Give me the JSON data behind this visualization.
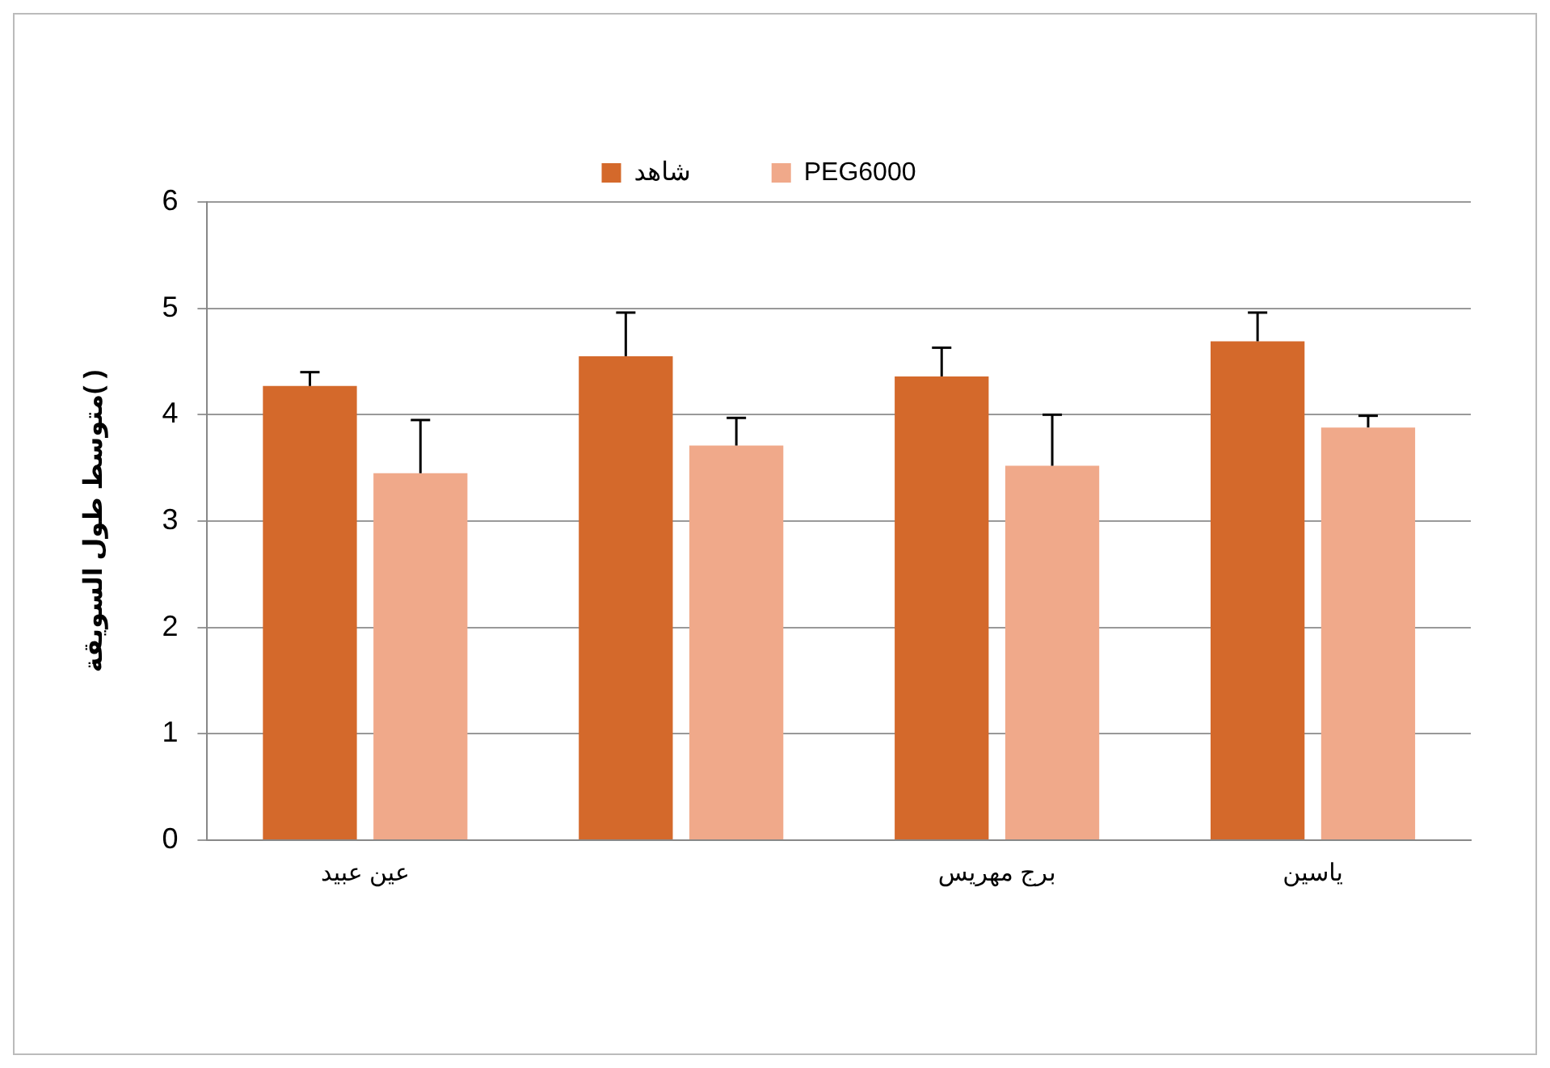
{
  "chart_data": {
    "type": "bar",
    "ylabel": "متوسط طول السويقة( )",
    "categories": [
      "عين عبيد",
      null,
      "برج مهريس",
      "ياسين"
    ],
    "series": [
      {
        "name": "شاهد",
        "color": "#d4692b",
        "values": [
          4.27,
          4.55,
          4.36,
          4.69
        ],
        "errors": [
          [
            4.27,
            4.4
          ],
          [
            4.55,
            4.96
          ],
          [
            4.36,
            4.63
          ],
          [
            4.69,
            4.96
          ]
        ]
      },
      {
        "name": "PEG6000",
        "color": "#f0a98a",
        "values": [
          3.45,
          3.71,
          3.52,
          3.88
        ],
        "errors": [
          [
            3.45,
            3.95
          ],
          [
            3.71,
            3.97
          ],
          [
            3.52,
            4.0
          ],
          [
            3.88,
            3.99
          ]
        ]
      }
    ],
    "ylim": [
      0,
      6
    ],
    "yticks": [
      0,
      1,
      2,
      3,
      4,
      5,
      6
    ],
    "grid": "y",
    "legend": "top"
  }
}
